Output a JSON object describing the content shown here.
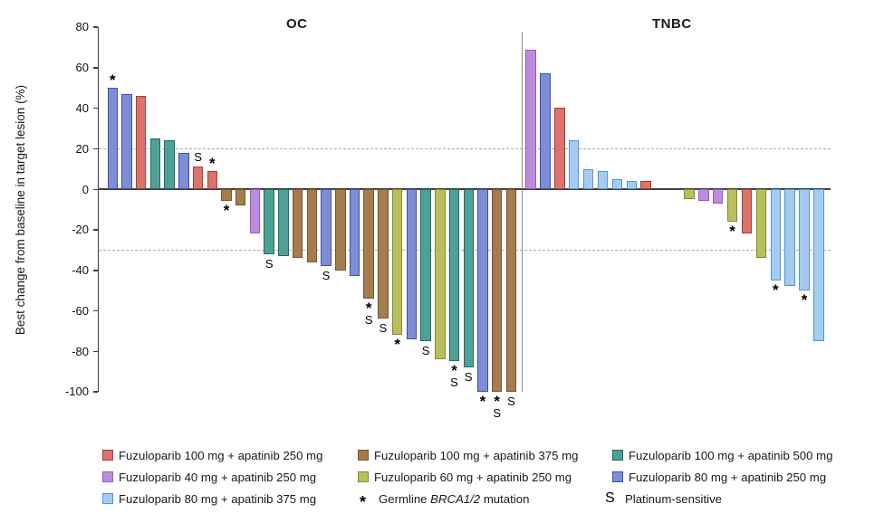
{
  "figure": {
    "left_group_title": "OC",
    "right_group_title": "TNBC",
    "y_axis_label": "Best change from baseline in target lesion (%)"
  },
  "chart_data": {
    "type": "bar",
    "variant": "waterfall",
    "ylabel": "Best change from baseline in target lesion (%)",
    "ylim": [
      -100,
      80
    ],
    "yticks": [
      80,
      60,
      40,
      20,
      0,
      -20,
      -40,
      -60,
      -80,
      -100
    ],
    "reference_lines": [
      20,
      -30
    ],
    "grid": "dashed-reference-lines-only",
    "legend_position": "bottom",
    "groups": [
      {
        "name": "OC",
        "bars": [
          {
            "value": 50,
            "arm": "fz80_ap250",
            "symbols": "*"
          },
          {
            "value": 47,
            "arm": "fz80_ap250",
            "symbols": ""
          },
          {
            "value": 46,
            "arm": "fz100_ap250",
            "symbols": ""
          },
          {
            "value": 25,
            "arm": "fz100_ap500",
            "symbols": ""
          },
          {
            "value": 24,
            "arm": "fz100_ap500",
            "symbols": ""
          },
          {
            "value": 18,
            "arm": "fz80_ap250",
            "symbols": ""
          },
          {
            "value": 11,
            "arm": "fz100_ap250",
            "symbols": "S"
          },
          {
            "value": 9,
            "arm": "fz100_ap250",
            "symbols": "*"
          },
          {
            "value": -6,
            "arm": "fz100_ap375",
            "symbols": "*"
          },
          {
            "value": -8,
            "arm": "fz100_ap375",
            "symbols": ""
          },
          {
            "value": -22,
            "arm": "fz40_ap250",
            "symbols": ""
          },
          {
            "value": -32,
            "arm": "fz100_ap500",
            "symbols": "S"
          },
          {
            "value": -33,
            "arm": "fz100_ap500",
            "symbols": ""
          },
          {
            "value": -34,
            "arm": "fz100_ap375",
            "symbols": ""
          },
          {
            "value": -36,
            "arm": "fz100_ap375",
            "symbols": ""
          },
          {
            "value": -38,
            "arm": "fz80_ap250",
            "symbols": "S"
          },
          {
            "value": -40,
            "arm": "fz100_ap375",
            "symbols": ""
          },
          {
            "value": -43,
            "arm": "fz80_ap250",
            "symbols": ""
          },
          {
            "value": -54,
            "arm": "fz100_ap375",
            "symbols": "*S"
          },
          {
            "value": -64,
            "arm": "fz100_ap375",
            "symbols": "S"
          },
          {
            "value": -72,
            "arm": "fz60_ap250",
            "symbols": "*"
          },
          {
            "value": -74,
            "arm": "fz80_ap250",
            "symbols": ""
          },
          {
            "value": -75,
            "arm": "fz100_ap500",
            "symbols": "S"
          },
          {
            "value": -84,
            "arm": "fz60_ap250",
            "symbols": ""
          },
          {
            "value": -85,
            "arm": "fz100_ap500",
            "symbols": "*S"
          },
          {
            "value": -88,
            "arm": "fz100_ap500",
            "symbols": "S"
          },
          {
            "value": -100,
            "arm": "fz80_ap250",
            "symbols": "*"
          },
          {
            "value": -100,
            "arm": "fz100_ap375",
            "symbols": "*S"
          },
          {
            "value": -100,
            "arm": "fz100_ap375",
            "symbols": "S"
          }
        ]
      },
      {
        "name": "TNBC",
        "empty_slots": [
          9,
          10
        ],
        "bars": [
          {
            "value": 69,
            "arm": "fz40_ap250",
            "symbols": ""
          },
          {
            "value": 57,
            "arm": "fz80_ap250",
            "symbols": ""
          },
          {
            "value": 40,
            "arm": "fz100_ap250",
            "symbols": ""
          },
          {
            "value": 24,
            "arm": "fz80_ap375",
            "symbols": ""
          },
          {
            "value": 10,
            "arm": "fz80_ap375",
            "symbols": ""
          },
          {
            "value": 9,
            "arm": "fz80_ap375",
            "symbols": ""
          },
          {
            "value": 5,
            "arm": "fz80_ap375",
            "symbols": ""
          },
          {
            "value": 4,
            "arm": "fz80_ap375",
            "symbols": ""
          },
          {
            "value": 4,
            "arm": "fz100_ap250",
            "symbols": ""
          },
          {
            "value": -5,
            "arm": "fz60_ap250",
            "symbols": ""
          },
          {
            "value": -6,
            "arm": "fz40_ap250",
            "symbols": ""
          },
          {
            "value": -7,
            "arm": "fz40_ap250",
            "symbols": ""
          },
          {
            "value": -16,
            "arm": "fz60_ap250",
            "symbols": "*"
          },
          {
            "value": -22,
            "arm": "fz100_ap250",
            "symbols": ""
          },
          {
            "value": -34,
            "arm": "fz60_ap250",
            "symbols": ""
          },
          {
            "value": -45,
            "arm": "fz80_ap375",
            "symbols": "*"
          },
          {
            "value": -48,
            "arm": "fz80_ap375",
            "symbols": ""
          },
          {
            "value": -50,
            "arm": "fz80_ap375",
            "symbols": "*"
          },
          {
            "value": -75,
            "arm": "fz80_ap375",
            "symbols": ""
          }
        ]
      }
    ]
  },
  "colors": {
    "fz100_ap250": {
      "fill": "#D9736B",
      "stroke": "#B03A33"
    },
    "fz100_ap375": {
      "fill": "#A67C4E",
      "stroke": "#77552B"
    },
    "fz100_ap500": {
      "fill": "#4FA095",
      "stroke": "#206B60"
    },
    "fz40_ap250": {
      "fill": "#BC8DD9",
      "stroke": "#9C55CE"
    },
    "fz60_ap250": {
      "fill": "#B8BF5C",
      "stroke": "#838A2E"
    },
    "fz80_ap250": {
      "fill": "#7D8ED3",
      "stroke": "#3A50BE"
    },
    "fz80_ap375": {
      "fill": "#A5CCEF",
      "stroke": "#4E97D9"
    }
  },
  "legend": {
    "treatments": [
      {
        "key": "fz100_ap250",
        "label": "Fuzuloparib 100 mg + apatinib 250 mg"
      },
      {
        "key": "fz100_ap375",
        "label": "Fuzuloparib 100 mg + apatinib 375 mg"
      },
      {
        "key": "fz100_ap500",
        "label": "Fuzuloparib 100 mg + apatinib 500 mg"
      },
      {
        "key": "fz40_ap250",
        "label": "Fuzuloparib 40 mg + apatinib 250 mg"
      },
      {
        "key": "fz60_ap250",
        "label": "Fuzuloparib 60 mg + apatinib 250 mg"
      },
      {
        "key": "fz80_ap250",
        "label": "Fuzuloparib 80 mg + apatinib 250 mg"
      },
      {
        "key": "fz80_ap375",
        "label": "Fuzuloparib 80 mg + apatinib 375 mg"
      }
    ],
    "brca": {
      "symbol": "*",
      "prefix": "Germline ",
      "gene": "BRCA1/2",
      "suffix": " mutation"
    },
    "platinum": {
      "symbol": "S",
      "label": "Platinum-sensitive"
    }
  }
}
